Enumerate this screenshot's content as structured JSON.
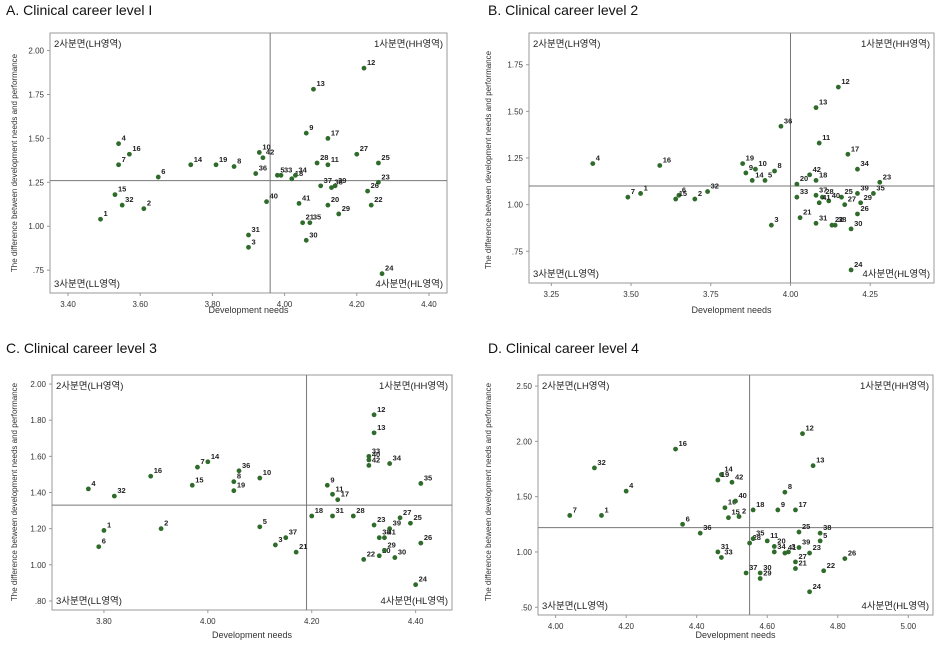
{
  "quadrant_labels": {
    "q1": "1사분면(HH영역)",
    "q2": "2사분면(LH영역)",
    "q3": "3사분면(LL영역)",
    "q4": "4사분면(HL영역)"
  },
  "colors": {
    "point": "#2f6b2a",
    "frame": "#999999",
    "reference_line": "#777777"
  },
  "chart_data": [
    {
      "type": "scatter",
      "title": "A. Clinical career level I",
      "xlabel": "Development needs",
      "ylabel": "The difference between development needs and performance",
      "xlim": [
        3.35,
        4.45
      ],
      "ylim": [
        0.62,
        2.1
      ],
      "xticks": [
        3.4,
        3.6,
        3.8,
        4.0,
        4.2,
        4.4
      ],
      "xtick_labels": [
        "3.40",
        "3.60",
        "3.80",
        "4.00",
        "4.20",
        "4.40"
      ],
      "yticks": [
        0.75,
        1.0,
        1.25,
        1.5,
        1.75,
        2.0
      ],
      "ytick_labels": [
        ".75",
        "1.00",
        "1.25",
        "1.50",
        "1.75",
        "2.00"
      ],
      "ref_x": 3.96,
      "ref_y": 1.26,
      "points": [
        {
          "label": "1",
          "x": 3.49,
          "y": 1.04
        },
        {
          "label": "2",
          "x": 3.61,
          "y": 1.1
        },
        {
          "label": "3",
          "x": 3.9,
          "y": 0.88
        },
        {
          "label": "4",
          "x": 3.54,
          "y": 1.47
        },
        {
          "label": "5",
          "x": 3.98,
          "y": 1.29
        },
        {
          "label": "6",
          "x": 3.65,
          "y": 1.28
        },
        {
          "label": "7",
          "x": 3.54,
          "y": 1.35
        },
        {
          "label": "8",
          "x": 3.86,
          "y": 1.34
        },
        {
          "label": "9",
          "x": 4.06,
          "y": 1.53
        },
        {
          "label": "10",
          "x": 3.93,
          "y": 1.42
        },
        {
          "label": "11",
          "x": 4.12,
          "y": 1.35
        },
        {
          "label": "12",
          "x": 4.22,
          "y": 1.9
        },
        {
          "label": "13",
          "x": 4.08,
          "y": 1.78
        },
        {
          "label": "14",
          "x": 3.74,
          "y": 1.35
        },
        {
          "label": "15",
          "x": 3.53,
          "y": 1.18
        },
        {
          "label": "16",
          "x": 3.57,
          "y": 1.41
        },
        {
          "label": "17",
          "x": 4.12,
          "y": 1.5
        },
        {
          "label": "18",
          "x": 4.02,
          "y": 1.27
        },
        {
          "label": "19",
          "x": 3.81,
          "y": 1.35
        },
        {
          "label": "20",
          "x": 4.12,
          "y": 1.12
        },
        {
          "label": "21",
          "x": 4.05,
          "y": 1.02
        },
        {
          "label": "22",
          "x": 4.24,
          "y": 1.12
        },
        {
          "label": "23",
          "x": 4.26,
          "y": 1.25
        },
        {
          "label": "24",
          "x": 4.27,
          "y": 0.73
        },
        {
          "label": "25",
          "x": 4.26,
          "y": 1.36
        },
        {
          "label": "26",
          "x": 4.23,
          "y": 1.2
        },
        {
          "label": "27",
          "x": 4.2,
          "y": 1.41
        },
        {
          "label": "28",
          "x": 4.09,
          "y": 1.36
        },
        {
          "label": "29",
          "x": 4.15,
          "y": 1.07
        },
        {
          "label": "30",
          "x": 4.06,
          "y": 0.92
        },
        {
          "label": "31",
          "x": 3.9,
          "y": 0.95
        },
        {
          "label": "32",
          "x": 3.55,
          "y": 1.12
        },
        {
          "label": "33",
          "x": 3.99,
          "y": 1.29
        },
        {
          "label": "34",
          "x": 4.03,
          "y": 1.29
        },
        {
          "label": "35",
          "x": 4.07,
          "y": 1.02
        },
        {
          "label": "36",
          "x": 3.92,
          "y": 1.3
        },
        {
          "label": "37",
          "x": 4.1,
          "y": 1.23
        },
        {
          "label": "38",
          "x": 4.13,
          "y": 1.22
        },
        {
          "label": "39",
          "x": 4.14,
          "y": 1.23
        },
        {
          "label": "40",
          "x": 3.95,
          "y": 1.14
        },
        {
          "label": "41",
          "x": 4.04,
          "y": 1.13
        },
        {
          "label": "42",
          "x": 3.94,
          "y": 1.39
        }
      ]
    },
    {
      "type": "scatter",
      "title": "B. Clinical career level 2",
      "xlabel": "Development needs",
      "ylabel": "The difference between development needs and performance",
      "xlim": [
        3.18,
        4.45
      ],
      "ylim": [
        0.58,
        1.92
      ],
      "xticks": [
        3.25,
        3.5,
        3.75,
        4.0,
        4.25
      ],
      "xtick_labels": [
        "3.25",
        "3.50",
        "3.75",
        "4.00",
        "4.25"
      ],
      "yticks": [
        0.75,
        1.0,
        1.25,
        1.5,
        1.75
      ],
      "ytick_labels": [
        ".75",
        "1.00",
        "1.25",
        "1.50",
        "1.75"
      ],
      "ref_x": 4.0,
      "ref_y": 1.1,
      "points": [
        {
          "label": "1",
          "x": 3.53,
          "y": 1.06
        },
        {
          "label": "2",
          "x": 3.7,
          "y": 1.03
        },
        {
          "label": "3",
          "x": 3.94,
          "y": 0.89
        },
        {
          "label": "4",
          "x": 3.38,
          "y": 1.22
        },
        {
          "label": "5",
          "x": 3.92,
          "y": 1.13
        },
        {
          "label": "6",
          "x": 3.65,
          "y": 1.05
        },
        {
          "label": "7",
          "x": 3.49,
          "y": 1.04
        },
        {
          "label": "8",
          "x": 3.95,
          "y": 1.18
        },
        {
          "label": "9",
          "x": 3.86,
          "y": 1.17
        },
        {
          "label": "10",
          "x": 3.89,
          "y": 1.19
        },
        {
          "label": "11",
          "x": 4.09,
          "y": 1.33
        },
        {
          "label": "12",
          "x": 4.15,
          "y": 1.63
        },
        {
          "label": "13",
          "x": 4.08,
          "y": 1.52
        },
        {
          "label": "14",
          "x": 3.88,
          "y": 1.13
        },
        {
          "label": "15",
          "x": 3.64,
          "y": 1.03
        },
        {
          "label": "16",
          "x": 3.59,
          "y": 1.21
        },
        {
          "label": "17",
          "x": 4.18,
          "y": 1.27
        },
        {
          "label": "18",
          "x": 4.08,
          "y": 1.13
        },
        {
          "label": "19",
          "x": 3.85,
          "y": 1.22
        },
        {
          "label": "20",
          "x": 4.02,
          "y": 1.11
        },
        {
          "label": "21",
          "x": 4.03,
          "y": 0.93
        },
        {
          "label": "22",
          "x": 4.13,
          "y": 0.89
        },
        {
          "label": "23",
          "x": 4.28,
          "y": 1.12
        },
        {
          "label": "24",
          "x": 4.19,
          "y": 0.65
        },
        {
          "label": "25",
          "x": 4.16,
          "y": 1.04
        },
        {
          "label": "26",
          "x": 4.21,
          "y": 0.95
        },
        {
          "label": "27",
          "x": 4.17,
          "y": 1.0
        },
        {
          "label": "28",
          "x": 4.1,
          "y": 1.04
        },
        {
          "label": "29",
          "x": 4.22,
          "y": 1.01
        },
        {
          "label": "30",
          "x": 4.19,
          "y": 0.87
        },
        {
          "label": "31",
          "x": 4.08,
          "y": 0.9
        },
        {
          "label": "32",
          "x": 3.74,
          "y": 1.07
        },
        {
          "label": "33",
          "x": 4.02,
          "y": 1.04
        },
        {
          "label": "34",
          "x": 4.21,
          "y": 1.19
        },
        {
          "label": "35",
          "x": 4.26,
          "y": 1.06
        },
        {
          "label": "36",
          "x": 3.97,
          "y": 1.42
        },
        {
          "label": "37",
          "x": 4.08,
          "y": 1.05
        },
        {
          "label": "38",
          "x": 4.14,
          "y": 0.89
        },
        {
          "label": "39",
          "x": 4.21,
          "y": 1.06
        },
        {
          "label": "40",
          "x": 4.12,
          "y": 1.02
        },
        {
          "label": "41",
          "x": 4.09,
          "y": 1.01
        },
        {
          "label": "42",
          "x": 4.06,
          "y": 1.16
        }
      ]
    },
    {
      "type": "scatter",
      "title": "C. Clinical career level 3",
      "xlabel": "Development needs",
      "ylabel": "The difference between development needs and performance",
      "xlim": [
        3.7,
        4.47
      ],
      "ylim": [
        0.75,
        2.05
      ],
      "xticks": [
        3.8,
        4.0,
        4.2,
        4.4
      ],
      "xtick_labels": [
        "3.80",
        "4.00",
        "4.20",
        "4.40"
      ],
      "yticks": [
        0.8,
        1.0,
        1.2,
        1.4,
        1.6,
        1.8,
        2.0
      ],
      "ytick_labels": [
        ".80",
        "1.00",
        "1.20",
        "1.40",
        "1.60",
        "1.80",
        "2.00"
      ],
      "ref_x": 4.19,
      "ref_y": 1.33,
      "points": [
        {
          "label": "1",
          "x": 3.8,
          "y": 1.19
        },
        {
          "label": "2",
          "x": 3.91,
          "y": 1.2
        },
        {
          "label": "3",
          "x": 4.13,
          "y": 1.11
        },
        {
          "label": "4",
          "x": 3.77,
          "y": 1.42
        },
        {
          "label": "5",
          "x": 4.1,
          "y": 1.21
        },
        {
          "label": "6",
          "x": 3.79,
          "y": 1.1
        },
        {
          "label": "7",
          "x": 3.98,
          "y": 1.54
        },
        {
          "label": "8",
          "x": 4.05,
          "y": 1.46
        },
        {
          "label": "9",
          "x": 4.23,
          "y": 1.44
        },
        {
          "label": "10",
          "x": 4.1,
          "y": 1.48
        },
        {
          "label": "11",
          "x": 4.24,
          "y": 1.39
        },
        {
          "label": "12",
          "x": 4.32,
          "y": 1.83
        },
        {
          "label": "13",
          "x": 4.32,
          "y": 1.73
        },
        {
          "label": "14",
          "x": 4.0,
          "y": 1.57
        },
        {
          "label": "15",
          "x": 3.97,
          "y": 1.44
        },
        {
          "label": "16",
          "x": 3.89,
          "y": 1.49
        },
        {
          "label": "17",
          "x": 4.25,
          "y": 1.36
        },
        {
          "label": "18",
          "x": 4.2,
          "y": 1.27
        },
        {
          "label": "19",
          "x": 4.05,
          "y": 1.41
        },
        {
          "label": "20",
          "x": 4.33,
          "y": 1.05
        },
        {
          "label": "21",
          "x": 4.17,
          "y": 1.07
        },
        {
          "label": "22",
          "x": 4.3,
          "y": 1.03
        },
        {
          "label": "23",
          "x": 4.32,
          "y": 1.22
        },
        {
          "label": "24",
          "x": 4.4,
          "y": 0.89
        },
        {
          "label": "25",
          "x": 4.39,
          "y": 1.23
        },
        {
          "label": "26",
          "x": 4.41,
          "y": 1.12
        },
        {
          "label": "27",
          "x": 4.37,
          "y": 1.26
        },
        {
          "label": "28",
          "x": 4.28,
          "y": 1.27
        },
        {
          "label": "29",
          "x": 4.34,
          "y": 1.08
        },
        {
          "label": "30",
          "x": 4.36,
          "y": 1.04
        },
        {
          "label": "31",
          "x": 4.24,
          "y": 1.27
        },
        {
          "label": "32",
          "x": 3.82,
          "y": 1.38
        },
        {
          "label": "33",
          "x": 4.31,
          "y": 1.6
        },
        {
          "label": "34",
          "x": 4.35,
          "y": 1.56
        },
        {
          "label": "35",
          "x": 4.41,
          "y": 1.45
        },
        {
          "label": "36",
          "x": 4.06,
          "y": 1.52
        },
        {
          "label": "37",
          "x": 4.15,
          "y": 1.15
        },
        {
          "label": "38",
          "x": 4.33,
          "y": 1.15
        },
        {
          "label": "39",
          "x": 4.35,
          "y": 1.2
        },
        {
          "label": "40",
          "x": 4.31,
          "y": 1.58
        },
        {
          "label": "41",
          "x": 4.34,
          "y": 1.15
        },
        {
          "label": "42",
          "x": 4.31,
          "y": 1.55
        }
      ]
    },
    {
      "type": "scatter",
      "title": "D. Clinical career level 4",
      "xlabel": "Development needs",
      "ylabel": "The difference between development needs and performance",
      "xlim": [
        3.95,
        5.07
      ],
      "ylim": [
        0.43,
        2.6
      ],
      "xticks": [
        4.0,
        4.2,
        4.4,
        4.6,
        4.8,
        5.0
      ],
      "xtick_labels": [
        "4.00",
        "4.20",
        "4.40",
        "4.60",
        "4.80",
        "5.00"
      ],
      "yticks": [
        0.5,
        1.0,
        1.5,
        2.0,
        2.5
      ],
      "ytick_labels": [
        ".50",
        "1.00",
        "1.50",
        "2.00",
        "2.50"
      ],
      "ref_x": 4.55,
      "ref_y": 1.22,
      "points": [
        {
          "label": "1",
          "x": 4.13,
          "y": 1.33
        },
        {
          "label": "2",
          "x": 4.52,
          "y": 1.32
        },
        {
          "label": "3",
          "x": 4.66,
          "y": 1.0
        },
        {
          "label": "4",
          "x": 4.2,
          "y": 1.55
        },
        {
          "label": "5",
          "x": 4.75,
          "y": 1.1
        },
        {
          "label": "6",
          "x": 4.36,
          "y": 1.25
        },
        {
          "label": "7",
          "x": 4.04,
          "y": 1.33
        },
        {
          "label": "8",
          "x": 4.65,
          "y": 1.54
        },
        {
          "label": "9",
          "x": 4.63,
          "y": 1.38
        },
        {
          "label": "10",
          "x": 4.48,
          "y": 1.4
        },
        {
          "label": "11",
          "x": 4.6,
          "y": 1.1
        },
        {
          "label": "12",
          "x": 4.7,
          "y": 2.07
        },
        {
          "label": "13",
          "x": 4.73,
          "y": 1.78
        },
        {
          "label": "14",
          "x": 4.47,
          "y": 1.7
        },
        {
          "label": "15",
          "x": 4.49,
          "y": 1.31
        },
        {
          "label": "16",
          "x": 4.34,
          "y": 1.93
        },
        {
          "label": "17",
          "x": 4.68,
          "y": 1.38
        },
        {
          "label": "18",
          "x": 4.56,
          "y": 1.38
        },
        {
          "label": "19",
          "x": 4.46,
          "y": 1.65
        },
        {
          "label": "20",
          "x": 4.62,
          "y": 1.05
        },
        {
          "label": "21",
          "x": 4.68,
          "y": 0.85
        },
        {
          "label": "22",
          "x": 4.76,
          "y": 0.83
        },
        {
          "label": "23",
          "x": 4.72,
          "y": 0.99
        },
        {
          "label": "24",
          "x": 4.72,
          "y": 0.64
        },
        {
          "label": "25",
          "x": 4.69,
          "y": 1.18
        },
        {
          "label": "26",
          "x": 4.82,
          "y": 0.94
        },
        {
          "label": "27",
          "x": 4.68,
          "y": 0.91
        },
        {
          "label": "28",
          "x": 4.55,
          "y": 1.08
        },
        {
          "label": "29",
          "x": 4.58,
          "y": 0.76
        },
        {
          "label": "30",
          "x": 4.58,
          "y": 0.81
        },
        {
          "label": "31",
          "x": 4.46,
          "y": 1.0
        },
        {
          "label": "32",
          "x": 4.11,
          "y": 1.76
        },
        {
          "label": "33",
          "x": 4.47,
          "y": 0.95
        },
        {
          "label": "34",
          "x": 4.62,
          "y": 1.0
        },
        {
          "label": "35",
          "x": 4.56,
          "y": 1.12
        },
        {
          "label": "36",
          "x": 4.41,
          "y": 1.17
        },
        {
          "label": "37",
          "x": 4.54,
          "y": 0.81
        },
        {
          "label": "38",
          "x": 4.75,
          "y": 1.17
        },
        {
          "label": "39",
          "x": 4.69,
          "y": 1.04
        },
        {
          "label": "40",
          "x": 4.51,
          "y": 1.46
        },
        {
          "label": "41",
          "x": 4.65,
          "y": 0.99
        },
        {
          "label": "42",
          "x": 4.5,
          "y": 1.63
        }
      ]
    }
  ]
}
